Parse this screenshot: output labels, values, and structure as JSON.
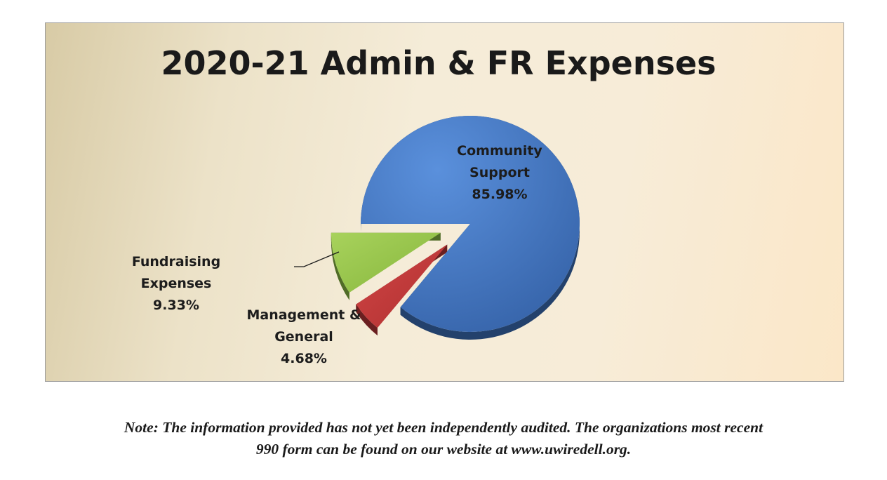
{
  "chart_data": {
    "type": "pie",
    "title": "2020-21 Admin & FR Expenses",
    "slices": [
      {
        "name": "Community Support",
        "label_lines": [
          "Community",
          "Support"
        ],
        "value": 85.98,
        "value_label": "85.98%",
        "color": "#3f76c4",
        "exploded": false
      },
      {
        "name": "Management & General",
        "label_lines": [
          "Management &",
          "General"
        ],
        "value": 4.68,
        "value_label": "4.68%",
        "color": "#c0393a",
        "exploded": true
      },
      {
        "name": "Fundraising Expenses",
        "label_lines": [
          "Fundraising",
          "Expenses"
        ],
        "value": 9.33,
        "value_label": "9.33%",
        "color": "#92c447",
        "exploded": true
      }
    ]
  },
  "note": {
    "line1": "Note:  The information provided has not yet been independently audited.  The organizations most recent",
    "line2": "990 form can be found on our website at www.uwiredell.org."
  }
}
